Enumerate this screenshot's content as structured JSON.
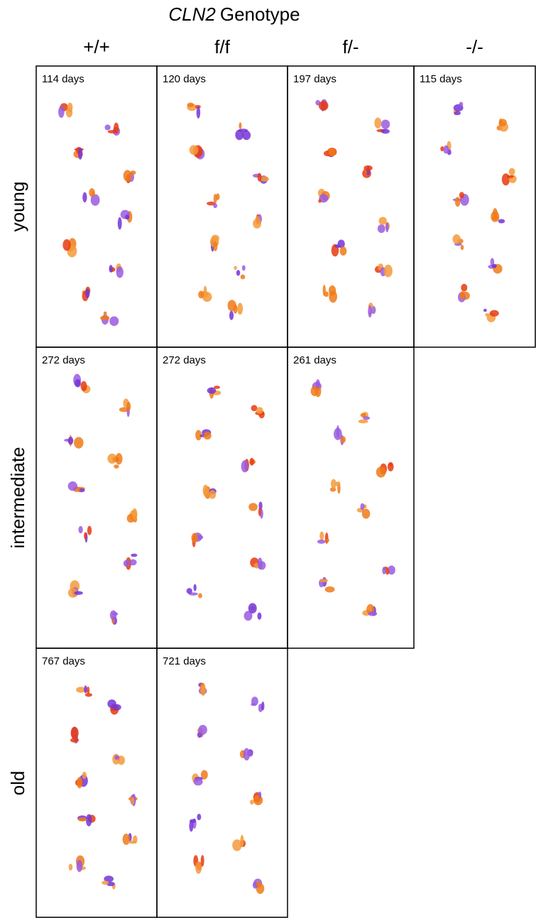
{
  "header": {
    "title_gene": "CLN2",
    "title_rest": "Genotype"
  },
  "columns": [
    "+/+",
    "f/f",
    "f/-",
    "-/-"
  ],
  "rows": [
    {
      "label": "young",
      "panels": [
        "114 days",
        "120 days",
        "197 days",
        "115 days"
      ]
    },
    {
      "label": "intermediate",
      "panels": [
        "272 days",
        "272 days",
        "261 days"
      ]
    },
    {
      "label": "old",
      "panels": [
        "767 days",
        "721 days"
      ]
    }
  ]
}
